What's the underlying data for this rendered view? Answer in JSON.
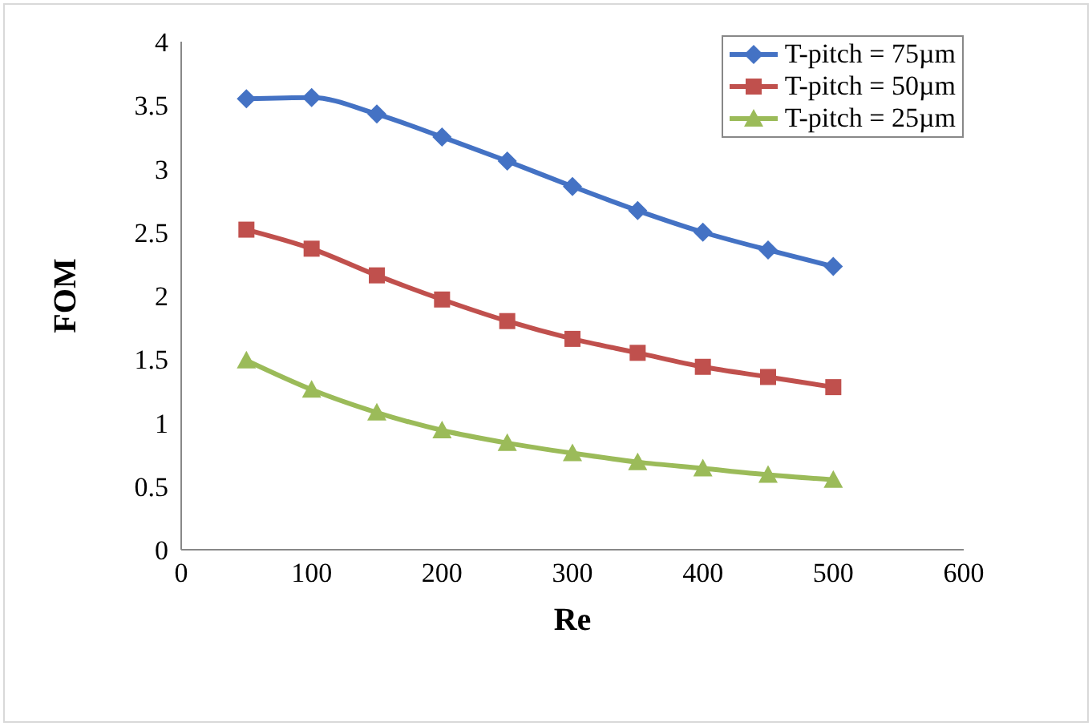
{
  "chart_data": {
    "type": "line",
    "xlabel": "Re",
    "ylabel": "FOM",
    "x": [
      50,
      100,
      150,
      200,
      250,
      300,
      350,
      400,
      450,
      500
    ],
    "xlim": [
      0,
      600
    ],
    "xticks": [
      0,
      100,
      200,
      300,
      400,
      500,
      600
    ],
    "ylim": [
      0,
      4
    ],
    "yticks": [
      0,
      0.5,
      1,
      1.5,
      2,
      2.5,
      3,
      3.5,
      4
    ],
    "grid": false,
    "legend": "top right",
    "series": [
      {
        "name": "T-pitch = 75µm",
        "color": "#4472c4",
        "marker": "diamond",
        "values": [
          3.55,
          3.56,
          3.43,
          3.25,
          3.06,
          2.86,
          2.67,
          2.5,
          2.36,
          2.23
        ]
      },
      {
        "name": "T-pitch = 50µm",
        "color": "#c0504d",
        "marker": "square",
        "values": [
          2.52,
          2.37,
          2.16,
          1.97,
          1.8,
          1.66,
          1.55,
          1.44,
          1.36,
          1.28
        ]
      },
      {
        "name": "T-pitch = 25µm",
        "color": "#9bbb59",
        "marker": "triangle",
        "values": [
          1.49,
          1.26,
          1.08,
          0.94,
          0.84,
          0.76,
          0.69,
          0.64,
          0.59,
          0.55
        ]
      }
    ]
  }
}
